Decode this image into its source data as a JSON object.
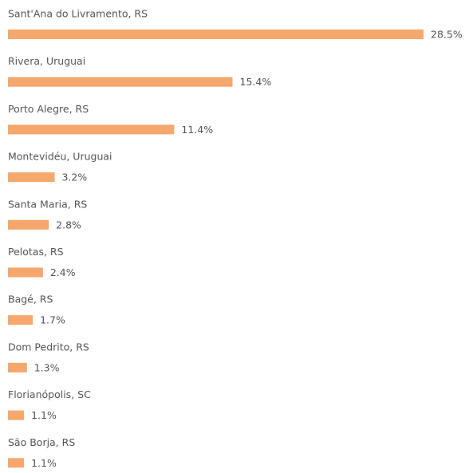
{
  "chart_data": {
    "type": "bar",
    "categories": [
      "Sant'Ana do Livramento, RS",
      "Rivera, Uruguai",
      "Porto Alegre, RS",
      "Montevidéu, Uruguai",
      "Santa Maria, RS",
      "Pelotas, RS",
      "Bagé, RS",
      "Dom Pedrito, RS",
      "Florianópolis, SC",
      "São Borja, RS"
    ],
    "values": [
      28.5,
      15.4,
      11.4,
      3.2,
      2.8,
      2.4,
      1.7,
      1.3,
      1.1,
      1.1
    ],
    "value_labels": [
      "28.5%",
      "15.4%",
      "11.4%",
      "3.2%",
      "2.8%",
      "2.4%",
      "1.7%",
      "1.3%",
      "1.1%",
      "1.1%"
    ],
    "color": "#f5a76c"
  }
}
